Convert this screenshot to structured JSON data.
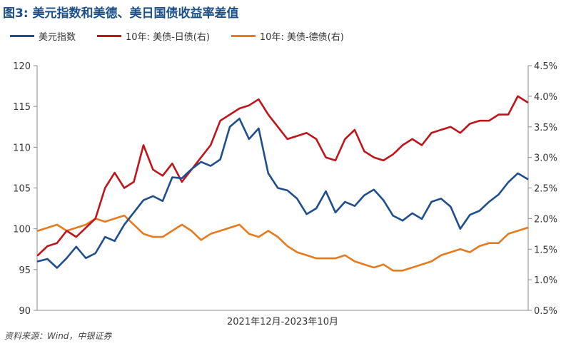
{
  "title": "图3: 美元指数和美德、美日国债收益率差值",
  "source": "资料来源：Wind，中银证券",
  "chart_data": {
    "type": "line",
    "title": "图3: 美元指数和美德、美日国债收益率差值",
    "xlabel": "2021年12月-2023年10月",
    "x_range": [
      "2021-12",
      "2023-10"
    ],
    "grid": false,
    "legend_position": "top-left",
    "y_left": {
      "min": 90,
      "max": 120,
      "ticks": [
        "90",
        "95",
        "100",
        "105",
        "110",
        "115",
        "120"
      ]
    },
    "y_right": {
      "min": 0.5,
      "max": 4.5,
      "ticks": [
        "0.5%",
        "1.0%",
        "1.5%",
        "2.0%",
        "2.5%",
        "3.0%",
        "3.5%",
        "4.0%",
        "4.5%"
      ]
    },
    "series": [
      {
        "name": "美元指数",
        "axis": "left",
        "color": "#1f4e8c",
        "values": [
          96.0,
          96.3,
          95.2,
          96.4,
          97.8,
          96.4,
          97.0,
          99.0,
          98.5,
          100.5,
          102.0,
          103.5,
          104.0,
          103.4,
          106.3,
          106.2,
          107.3,
          108.2,
          107.7,
          108.5,
          112.5,
          113.5,
          111.0,
          112.3,
          106.8,
          105.0,
          104.7,
          103.7,
          101.8,
          102.5,
          104.6,
          102.0,
          103.3,
          102.8,
          104.1,
          104.8,
          103.5,
          101.6,
          101.0,
          101.9,
          101.2,
          103.3,
          103.7,
          102.7,
          100.0,
          101.7,
          102.2,
          103.3,
          104.2,
          105.7,
          106.8,
          106.1
        ]
      },
      {
        "name": "10年: 美债-日债(右)",
        "axis": "right",
        "color": "#c0141c",
        "values": [
          1.4,
          1.55,
          1.6,
          1.8,
          1.7,
          1.85,
          2.0,
          2.5,
          2.75,
          2.5,
          2.6,
          3.2,
          2.8,
          2.7,
          2.9,
          2.6,
          2.8,
          3.0,
          3.2,
          3.6,
          3.7,
          3.8,
          3.85,
          3.95,
          3.7,
          3.5,
          3.3,
          3.35,
          3.4,
          3.3,
          3.0,
          2.95,
          3.3,
          3.45,
          3.1,
          3.0,
          2.95,
          3.05,
          3.2,
          3.3,
          3.2,
          3.4,
          3.45,
          3.5,
          3.4,
          3.55,
          3.6,
          3.6,
          3.7,
          3.7,
          4.0,
          3.9
        ]
      },
      {
        "name": "10年: 美债-德债(右)",
        "axis": "right",
        "color": "#e67a1e",
        "values": [
          1.8,
          1.85,
          1.9,
          1.8,
          1.85,
          1.9,
          2.0,
          1.95,
          2.0,
          2.05,
          1.9,
          1.75,
          1.7,
          1.7,
          1.8,
          1.9,
          1.8,
          1.65,
          1.75,
          1.8,
          1.85,
          1.9,
          1.75,
          1.7,
          1.8,
          1.7,
          1.55,
          1.45,
          1.4,
          1.35,
          1.35,
          1.35,
          1.4,
          1.3,
          1.25,
          1.2,
          1.25,
          1.15,
          1.15,
          1.2,
          1.25,
          1.3,
          1.4,
          1.45,
          1.5,
          1.45,
          1.55,
          1.6,
          1.6,
          1.75,
          1.8,
          1.85
        ]
      }
    ]
  }
}
